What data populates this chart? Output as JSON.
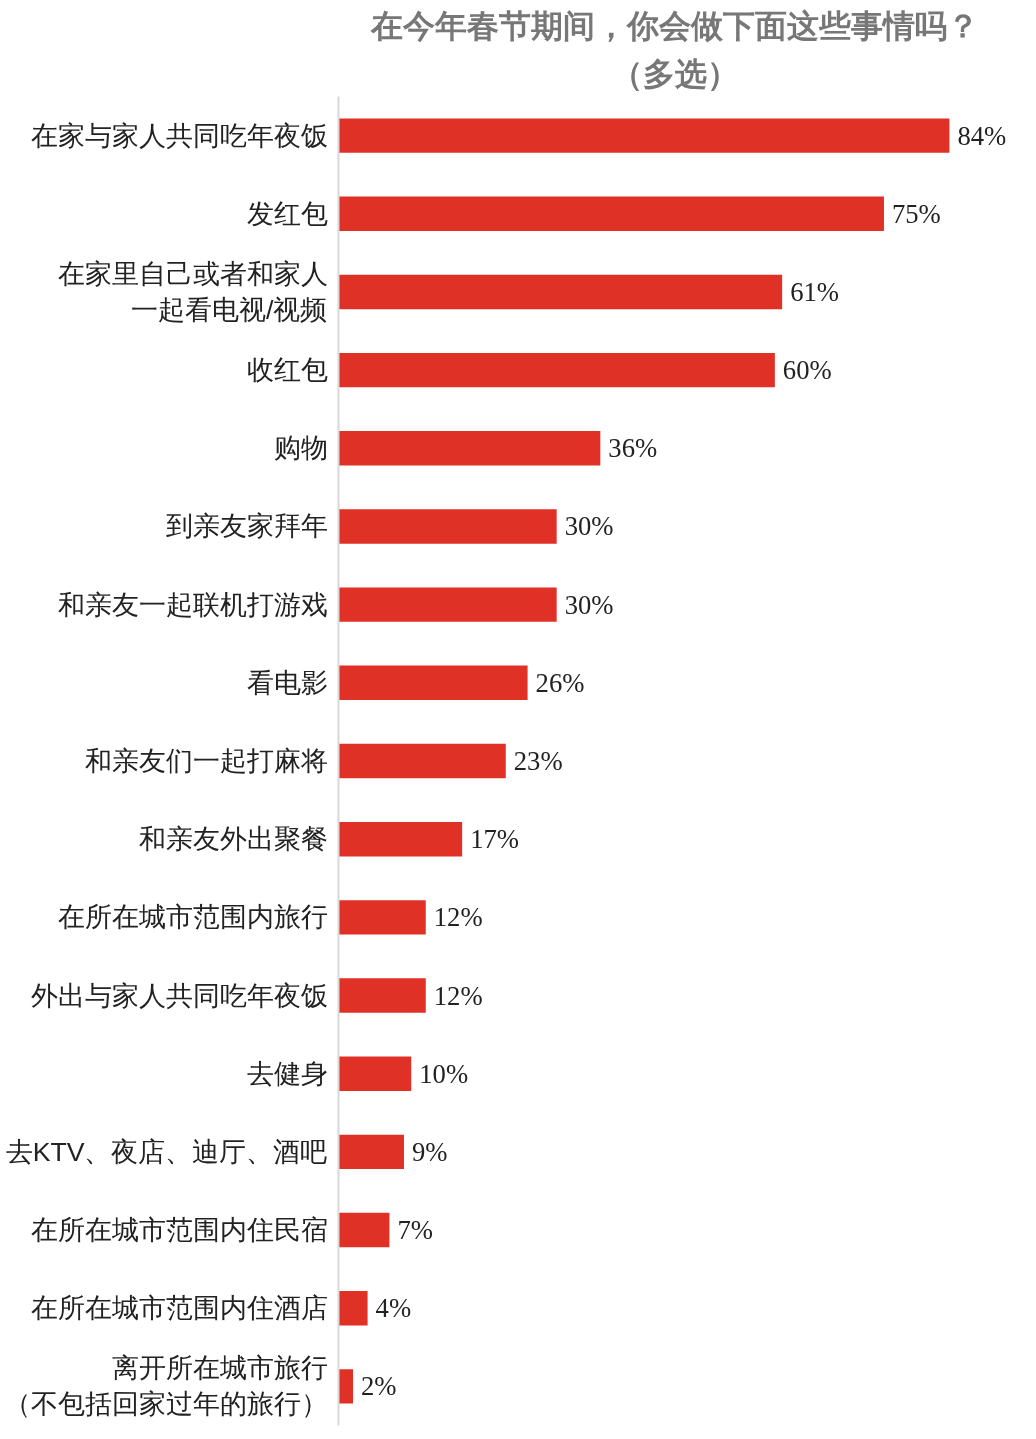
{
  "chart_data": {
    "type": "bar",
    "orientation": "horizontal",
    "title": "在今年春节期间，你会做下面这些事情吗？",
    "subtitle": "（多选）",
    "categories": [
      "在家与家人共同吃年夜饭",
      "发红包",
      "在家里自己或者和家人一起看电视/视频",
      "收红包",
      "购物",
      "到亲友家拜年",
      "和亲友一起联机打游戏",
      "看电影",
      "和亲友们一起打麻将",
      "和亲友外出聚餐",
      "在所在城市范围内旅行",
      "外出与家人共同吃年夜饭",
      "去健身",
      "去KTV、夜店、迪厅、酒吧",
      "在所在城市范围内住民宿",
      "在所在城市范围内住酒店",
      "离开所在城市旅行（不包括回家过年的旅行）"
    ],
    "values": [
      84,
      75,
      61,
      60,
      36,
      30,
      30,
      26,
      23,
      17,
      12,
      12,
      10,
      9,
      7,
      4,
      2
    ],
    "value_labels": [
      "84%",
      "75%",
      "61%",
      "60%",
      "36%",
      "30%",
      "30%",
      "26%",
      "23%",
      "17%",
      "12%",
      "12%",
      "10%",
      "9%",
      "7%",
      "4%",
      "2%"
    ],
    "color": "#e03127",
    "grid": false
  }
}
